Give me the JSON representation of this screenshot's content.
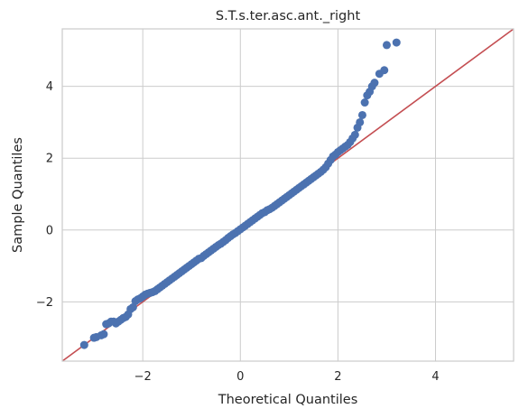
{
  "chart_data": {
    "type": "scatter",
    "title": "S.T.s.ter.asc.ant._right",
    "xlabel": "Theoretical Quantiles",
    "ylabel": "Sample Quantiles",
    "xlim": [
      -3.65,
      5.6
    ],
    "ylim": [
      -3.65,
      5.6
    ],
    "xticks": [
      -2,
      0,
      2,
      4
    ],
    "yticks": [
      -2,
      0,
      2,
      4
    ],
    "xtick_labels": [
      "−2",
      "0",
      "2",
      "4"
    ],
    "ytick_labels": [
      "−2",
      "0",
      "2",
      "4"
    ],
    "grid": true,
    "marker_color": "#4c72b0",
    "line_color": "#c44e52",
    "reference_line": {
      "slope": 1,
      "intercept": 0
    },
    "series": [
      {
        "points": [
          [
            -3.2,
            -3.2
          ],
          [
            -3.0,
            -3.0
          ],
          [
            -2.95,
            -2.98
          ],
          [
            -2.85,
            -2.93
          ],
          [
            -2.8,
            -2.9
          ],
          [
            -2.75,
            -2.62
          ],
          [
            -2.7,
            -2.6
          ],
          [
            -2.65,
            -2.55
          ],
          [
            -2.6,
            -2.55
          ],
          [
            -2.55,
            -2.6
          ],
          [
            -2.5,
            -2.55
          ],
          [
            -2.45,
            -2.5
          ],
          [
            -2.4,
            -2.45
          ],
          [
            -2.35,
            -2.42
          ],
          [
            -2.3,
            -2.35
          ],
          [
            -2.25,
            -2.2
          ],
          [
            -2.2,
            -2.15
          ],
          [
            -2.15,
            -1.98
          ],
          [
            -2.1,
            -1.93
          ],
          [
            -2.05,
            -1.9
          ],
          [
            -2.0,
            -1.85
          ],
          [
            -1.95,
            -1.8
          ],
          [
            -1.9,
            -1.77
          ],
          [
            -1.85,
            -1.75
          ],
          [
            -1.8,
            -1.73
          ],
          [
            -1.75,
            -1.7
          ],
          [
            -1.7,
            -1.65
          ],
          [
            -1.65,
            -1.6
          ],
          [
            -1.6,
            -1.55
          ],
          [
            -1.55,
            -1.5
          ],
          [
            -1.5,
            -1.45
          ],
          [
            -1.45,
            -1.4
          ],
          [
            -1.4,
            -1.35
          ],
          [
            -1.35,
            -1.3
          ],
          [
            -1.3,
            -1.25
          ],
          [
            -1.25,
            -1.2
          ],
          [
            -1.2,
            -1.15
          ],
          [
            -1.15,
            -1.1
          ],
          [
            -1.1,
            -1.05
          ],
          [
            -1.05,
            -1.0
          ],
          [
            -1.0,
            -0.95
          ],
          [
            -0.95,
            -0.9
          ],
          [
            -0.9,
            -0.85
          ],
          [
            -0.85,
            -0.8
          ],
          [
            -0.8,
            -0.78
          ],
          [
            -0.75,
            -0.72
          ],
          [
            -0.7,
            -0.67
          ],
          [
            -0.65,
            -0.62
          ],
          [
            -0.6,
            -0.57
          ],
          [
            -0.55,
            -0.52
          ],
          [
            -0.5,
            -0.47
          ],
          [
            -0.45,
            -0.42
          ],
          [
            -0.4,
            -0.38
          ],
          [
            -0.35,
            -0.33
          ],
          [
            -0.3,
            -0.28
          ],
          [
            -0.25,
            -0.22
          ],
          [
            -0.2,
            -0.17
          ],
          [
            -0.15,
            -0.12
          ],
          [
            -0.1,
            -0.08
          ],
          [
            -0.05,
            -0.03
          ],
          [
            0.0,
            0.02
          ],
          [
            0.05,
            0.07
          ],
          [
            0.1,
            0.12
          ],
          [
            0.15,
            0.17
          ],
          [
            0.2,
            0.22
          ],
          [
            0.25,
            0.27
          ],
          [
            0.3,
            0.32
          ],
          [
            0.35,
            0.37
          ],
          [
            0.4,
            0.42
          ],
          [
            0.45,
            0.47
          ],
          [
            0.5,
            0.5
          ],
          [
            0.55,
            0.55
          ],
          [
            0.6,
            0.58
          ],
          [
            0.65,
            0.62
          ],
          [
            0.7,
            0.67
          ],
          [
            0.75,
            0.72
          ],
          [
            0.8,
            0.77
          ],
          [
            0.85,
            0.82
          ],
          [
            0.9,
            0.87
          ],
          [
            0.95,
            0.92
          ],
          [
            1.0,
            0.97
          ],
          [
            1.05,
            1.02
          ],
          [
            1.1,
            1.07
          ],
          [
            1.15,
            1.12
          ],
          [
            1.2,
            1.17
          ],
          [
            1.25,
            1.22
          ],
          [
            1.3,
            1.27
          ],
          [
            1.35,
            1.32
          ],
          [
            1.4,
            1.37
          ],
          [
            1.45,
            1.42
          ],
          [
            1.5,
            1.47
          ],
          [
            1.55,
            1.52
          ],
          [
            1.6,
            1.57
          ],
          [
            1.65,
            1.62
          ],
          [
            1.7,
            1.68
          ],
          [
            1.75,
            1.75
          ],
          [
            1.8,
            1.85
          ],
          [
            1.85,
            1.95
          ],
          [
            1.9,
            2.05
          ],
          [
            1.95,
            2.1
          ],
          [
            2.0,
            2.17
          ],
          [
            2.05,
            2.22
          ],
          [
            2.1,
            2.27
          ],
          [
            2.15,
            2.32
          ],
          [
            2.2,
            2.37
          ],
          [
            2.25,
            2.45
          ],
          [
            2.3,
            2.55
          ],
          [
            2.35,
            2.65
          ],
          [
            2.4,
            2.85
          ],
          [
            2.45,
            3.0
          ],
          [
            2.5,
            3.2
          ],
          [
            2.55,
            3.55
          ],
          [
            2.6,
            3.75
          ],
          [
            2.65,
            3.85
          ],
          [
            2.7,
            4.0
          ],
          [
            2.75,
            4.1
          ],
          [
            2.85,
            4.35
          ],
          [
            2.95,
            4.45
          ],
          [
            3.0,
            5.15
          ],
          [
            3.2,
            5.22
          ]
        ]
      }
    ]
  }
}
